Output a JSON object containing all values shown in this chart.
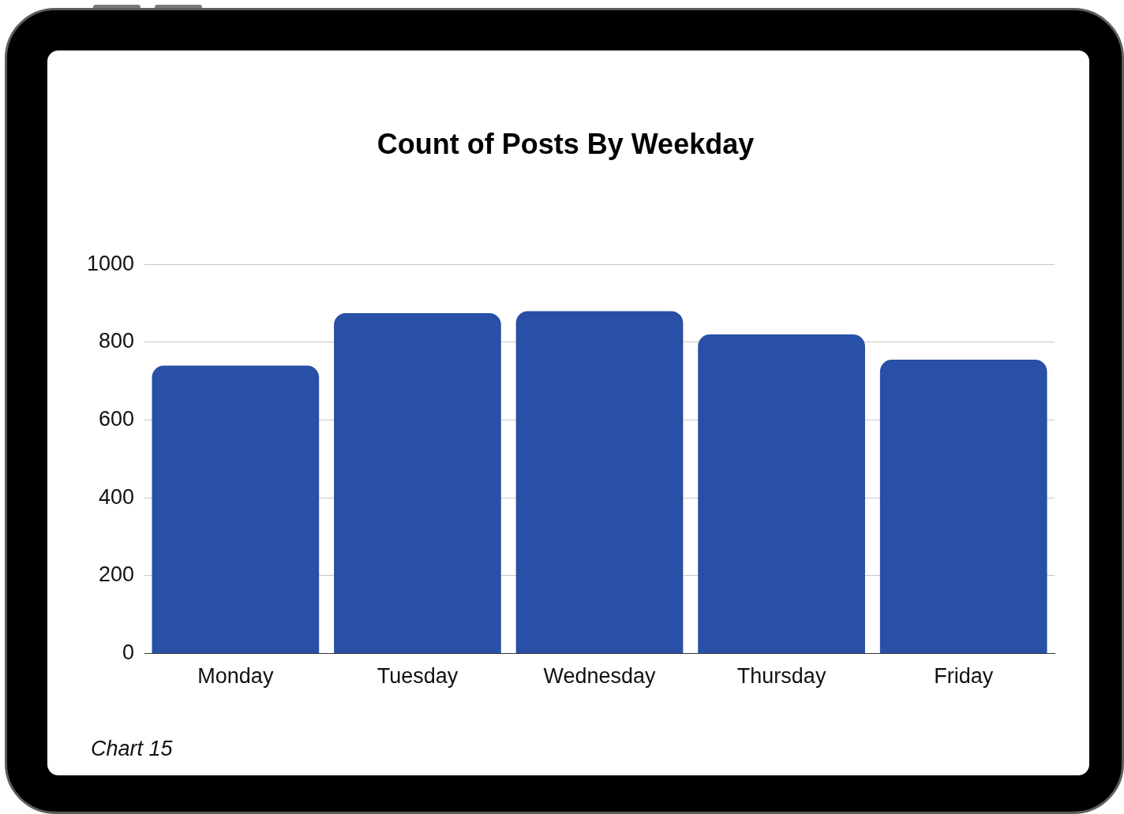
{
  "chart_data": {
    "type": "bar",
    "title": "Count of Posts By Weekday",
    "categories": [
      "Monday",
      "Tuesday",
      "Wednesday",
      "Thursday",
      "Friday"
    ],
    "values": [
      740,
      875,
      880,
      820,
      755
    ],
    "color": "#2750a6",
    "ylim": [
      0,
      1000
    ],
    "yticks": [
      0,
      200,
      400,
      600,
      800,
      1000
    ],
    "grid": "y",
    "annotations": [
      "Chart 15"
    ]
  }
}
